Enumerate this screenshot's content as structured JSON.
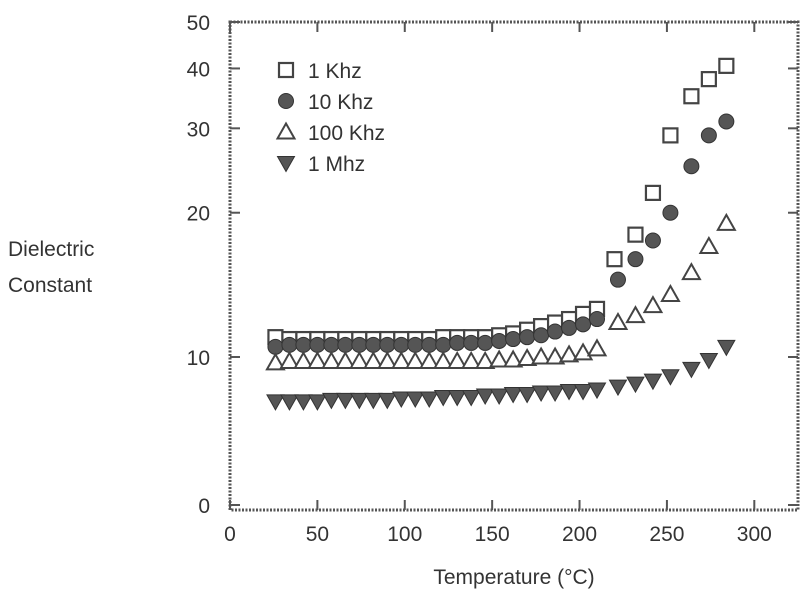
{
  "chart_data": {
    "type": "scatter",
    "title": "",
    "xlabel": "Temperature (°C)",
    "ylabel_lines": [
      "Dielectric",
      "Constant"
    ],
    "xlim": [
      0,
      325
    ],
    "ylim": [
      0,
      50
    ],
    "y_scale": "log-offset",
    "x_ticks": [
      0,
      50,
      100,
      150,
      200,
      250,
      300
    ],
    "y_ticks": [
      0,
      10,
      20,
      30,
      40,
      50
    ],
    "grid": false,
    "legend_position": "top-left",
    "series": [
      {
        "name": "1 Khz",
        "marker": "open-square",
        "color": "#444444",
        "x": [
          26,
          34,
          42,
          50,
          58,
          66,
          74,
          82,
          90,
          98,
          106,
          114,
          122,
          130,
          138,
          146,
          154,
          162,
          170,
          178,
          186,
          194,
          202,
          210,
          220,
          232,
          242,
          252,
          264,
          274,
          284
        ],
        "y": [
          11,
          10.9,
          10.9,
          10.9,
          10.9,
          10.9,
          10.9,
          10.9,
          10.9,
          10.9,
          10.9,
          10.9,
          11,
          11,
          11,
          11,
          11.1,
          11.2,
          11.4,
          11.6,
          11.8,
          12,
          12.3,
          12.6,
          16,
          18,
          22,
          29,
          35,
          38,
          40.5
        ]
      },
      {
        "name": "10 Khz",
        "marker": "filled-circle",
        "color": "#555555",
        "x": [
          26,
          34,
          42,
          50,
          58,
          66,
          74,
          82,
          90,
          98,
          106,
          114,
          122,
          130,
          138,
          146,
          154,
          162,
          170,
          178,
          186,
          194,
          202,
          210,
          222,
          232,
          242,
          252,
          264,
          274,
          284
        ],
        "y": [
          10.5,
          10.6,
          10.6,
          10.6,
          10.6,
          10.6,
          10.6,
          10.6,
          10.6,
          10.6,
          10.6,
          10.6,
          10.6,
          10.7,
          10.7,
          10.7,
          10.8,
          10.9,
          11,
          11.1,
          11.3,
          11.5,
          11.7,
          12,
          14.5,
          16,
          17.5,
          20,
          25,
          29,
          31
        ]
      },
      {
        "name": "100 Khz",
        "marker": "open-triangle-up",
        "color": "#444444",
        "x": [
          26,
          34,
          42,
          50,
          58,
          66,
          74,
          82,
          90,
          98,
          106,
          114,
          122,
          130,
          138,
          146,
          154,
          162,
          170,
          178,
          186,
          194,
          202,
          210,
          222,
          232,
          242,
          252,
          264,
          274,
          284
        ],
        "y": [
          9.6,
          9.7,
          9.7,
          9.7,
          9.7,
          9.7,
          9.7,
          9.7,
          9.7,
          9.7,
          9.7,
          9.7,
          9.7,
          9.7,
          9.7,
          9.7,
          9.8,
          9.8,
          9.9,
          10,
          10,
          10.1,
          10.2,
          10.4,
          11.8,
          12.2,
          12.8,
          13.5,
          15,
          17,
          19
        ]
      },
      {
        "name": "1 Mhz",
        "marker": "filled-triangle-down",
        "color": "#555555",
        "x": [
          26,
          34,
          42,
          50,
          58,
          66,
          74,
          82,
          90,
          98,
          106,
          114,
          122,
          130,
          138,
          146,
          154,
          162,
          170,
          178,
          186,
          194,
          202,
          210,
          222,
          232,
          242,
          252,
          264,
          274,
          284
        ],
        "y": [
          7,
          7,
          7,
          7,
          7.1,
          7.1,
          7.1,
          7.1,
          7.1,
          7.2,
          7.2,
          7.2,
          7.3,
          7.3,
          7.3,
          7.4,
          7.4,
          7.5,
          7.5,
          7.6,
          7.6,
          7.7,
          7.7,
          7.8,
          8,
          8.2,
          8.4,
          8.7,
          9.2,
          9.8,
          10.5
        ]
      }
    ]
  }
}
